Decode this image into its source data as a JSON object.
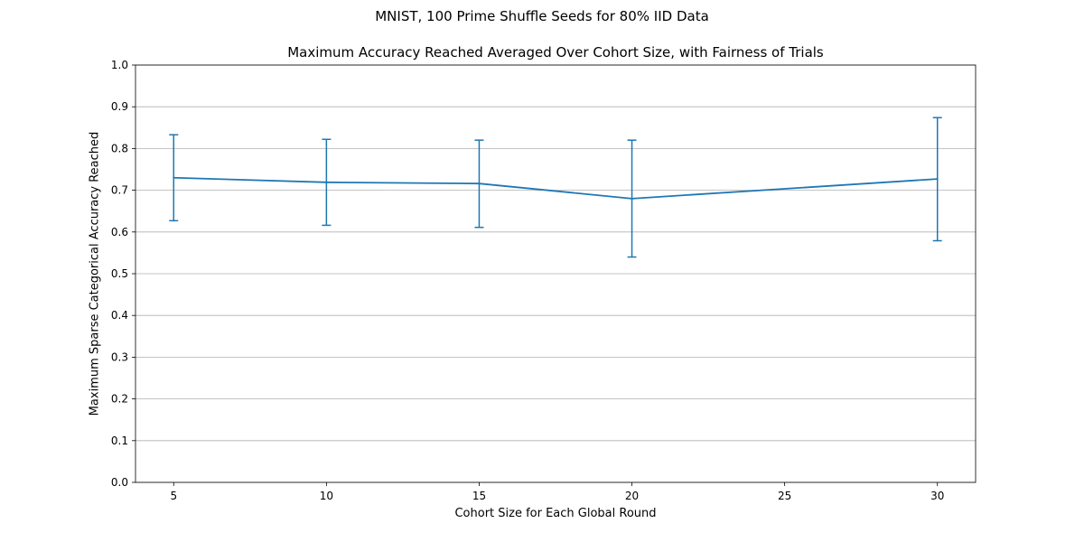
{
  "chart_data": {
    "type": "line",
    "suptitle": "MNIST, 100 Prime Shuffle Seeds for 80% IID Data",
    "title": "Maximum Accuracy Reached Averaged Over Cohort Size, with Fairness of Trials",
    "xlabel": "Cohort Size for Each Global Round",
    "ylabel": "Maximum Sparse Categorical Accuracy Reached",
    "x": [
      5,
      10,
      15,
      20,
      30
    ],
    "y": [
      0.73,
      0.719,
      0.716,
      0.68,
      0.727
    ],
    "yerr_low": [
      0.627,
      0.616,
      0.611,
      0.54,
      0.579
    ],
    "yerr_high": [
      0.833,
      0.822,
      0.82,
      0.82,
      0.874
    ],
    "xticks": [
      "5",
      "10",
      "15",
      "20",
      "25",
      "30"
    ],
    "yticks": [
      "0.0",
      "0.1",
      "0.2",
      "0.3",
      "0.4",
      "0.5",
      "0.6",
      "0.7",
      "0.8",
      "0.9",
      "1.0"
    ],
    "xlim": [
      3.75,
      31.25
    ],
    "ylim": [
      0,
      1
    ],
    "grid": "horizontal",
    "legend": "none",
    "color": "#1f77b4"
  }
}
